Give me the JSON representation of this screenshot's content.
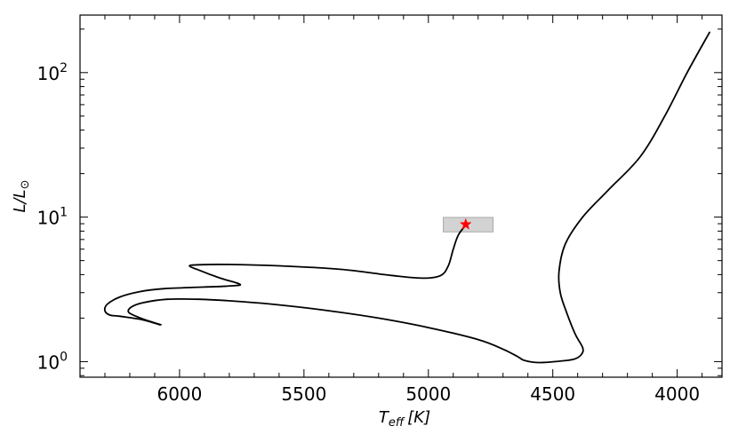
{
  "chart_data": {
    "type": "line",
    "title": "",
    "xlabel": {
      "main": "T",
      "sub": "eff",
      "unit": "[K]"
    },
    "ylabel": {
      "main": "L/L",
      "sub": "⊙"
    },
    "x_inverted": true,
    "y_scale": "log",
    "xlim": [
      6400,
      3820
    ],
    "ylim": [
      0.78,
      250
    ],
    "x_ticks": [
      6000,
      5500,
      5000,
      4500,
      4000
    ],
    "x_tick_labels": [
      "6000",
      "5500",
      "5000",
      "4500",
      "4000"
    ],
    "y_ticks": [
      1,
      10,
      100
    ],
    "y_tick_labels": [
      {
        "base": "10",
        "exp": "0"
      },
      {
        "base": "10",
        "exp": "1"
      },
      {
        "base": "10",
        "exp": "2"
      }
    ],
    "grid": false,
    "series": [
      {
        "color": "#000000",
        "points": [
          [
            6075,
            1.8
          ],
          [
            6120,
            1.9
          ],
          [
            6175,
            2.06
          ],
          [
            6205,
            2.2
          ],
          [
            6195,
            2.38
          ],
          [
            6150,
            2.55
          ],
          [
            6050,
            2.7
          ],
          [
            5920,
            2.7
          ],
          [
            5750,
            2.6
          ],
          [
            5580,
            2.45
          ],
          [
            5400,
            2.25
          ],
          [
            5200,
            2.0
          ],
          [
            5000,
            1.72
          ],
          [
            4800,
            1.42
          ],
          [
            4700,
            1.22
          ],
          [
            4640,
            1.08
          ],
          [
            4615,
            1.02
          ],
          [
            4560,
            0.985
          ],
          [
            4490,
            1.0
          ],
          [
            4415,
            1.04
          ],
          [
            4385,
            1.12
          ],
          [
            4380,
            1.25
          ],
          [
            4410,
            1.55
          ],
          [
            4445,
            2.2
          ],
          [
            4470,
            3.0
          ],
          [
            4475,
            4.2
          ],
          [
            4450,
            6.5
          ],
          [
            4380,
            10.0
          ],
          [
            4280,
            15.2
          ],
          [
            4150,
            26.0
          ],
          [
            4050,
            50.0
          ],
          [
            3960,
            100.0
          ],
          [
            3870,
            190.0
          ]
        ]
      },
      {
        "color": "#000000",
        "points": [
          [
            6080,
            1.8
          ],
          [
            6150,
            1.95
          ],
          [
            6240,
            2.06
          ],
          [
            6280,
            2.1
          ],
          [
            6300,
            2.25
          ],
          [
            6290,
            2.5
          ],
          [
            6240,
            2.8
          ],
          [
            6160,
            3.05
          ],
          [
            6060,
            3.2
          ],
          [
            5900,
            3.28
          ],
          [
            5780,
            3.35
          ],
          [
            5760,
            3.45
          ],
          [
            5840,
            3.8
          ],
          [
            5920,
            4.28
          ],
          [
            5960,
            4.6
          ],
          [
            5920,
            4.68
          ],
          [
            5800,
            4.7
          ],
          [
            5600,
            4.6
          ],
          [
            5350,
            4.35
          ],
          [
            5150,
            3.95
          ],
          [
            5020,
            3.78
          ],
          [
            4950,
            3.95
          ],
          [
            4920,
            4.6
          ],
          [
            4900,
            6.0
          ],
          [
            4880,
            7.5
          ],
          [
            4850,
            8.8
          ]
        ]
      }
    ],
    "annotations": [
      {
        "type": "shaded-box",
        "x_range": [
          4740,
          4940
        ],
        "y_range": [
          7.9,
          9.95
        ],
        "fill": "#d3d3d3",
        "stroke": "#a9a9a9"
      },
      {
        "type": "star-marker",
        "x": 4850,
        "y": 8.9,
        "color": "#ff0000"
      }
    ]
  }
}
